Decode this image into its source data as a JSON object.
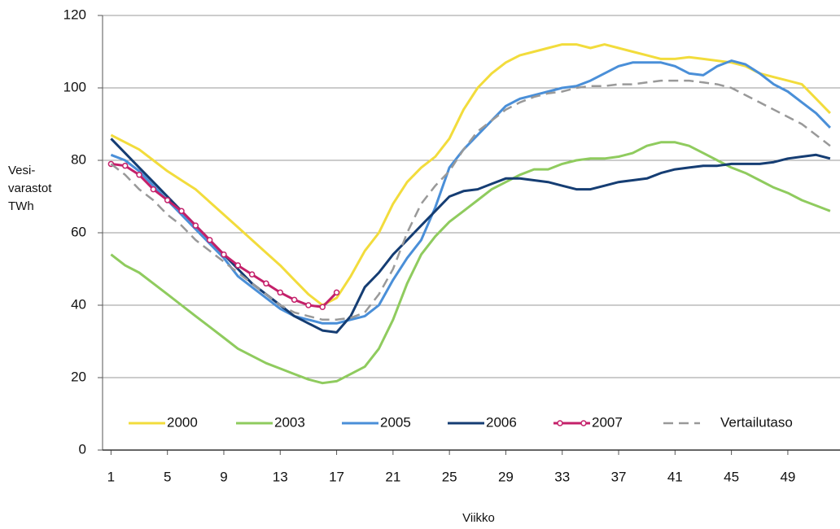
{
  "chart_data": {
    "type": "line",
    "y_label": [
      "Vesi-",
      "varastot",
      "TWh"
    ],
    "x_label": "Viikko",
    "x": [
      1,
      2,
      3,
      4,
      5,
      6,
      7,
      8,
      9,
      10,
      11,
      12,
      13,
      14,
      15,
      16,
      17,
      18,
      19,
      20,
      21,
      22,
      23,
      24,
      25,
      26,
      27,
      28,
      29,
      30,
      31,
      32,
      33,
      34,
      35,
      36,
      37,
      38,
      39,
      40,
      41,
      42,
      43,
      44,
      45,
      46,
      47,
      48,
      49,
      50,
      51,
      52
    ],
    "xlim": [
      0.4,
      52.7
    ],
    "xticks": [
      1,
      5,
      9,
      13,
      17,
      21,
      25,
      29,
      33,
      37,
      41,
      45,
      49
    ],
    "ylim": [
      0,
      120
    ],
    "yticks": [
      0,
      20,
      40,
      60,
      80,
      100,
      120
    ],
    "grid": true,
    "legend": "bottom",
    "series": [
      {
        "name": "2000",
        "color": "#f2dc3c",
        "values": [
          87,
          85,
          83,
          80,
          77,
          74.5,
          72,
          68.5,
          65,
          61.5,
          58,
          54.5,
          51,
          47,
          43,
          40,
          42,
          48,
          55,
          60,
          68,
          74,
          78,
          81,
          86,
          94,
          100,
          104,
          107,
          109,
          110,
          111,
          112,
          112,
          111,
          112,
          111,
          110,
          109,
          108,
          108,
          108.5,
          108,
          107.5,
          107,
          106,
          104,
          103,
          102,
          101,
          97,
          93
        ]
      },
      {
        "name": "2003",
        "color": "#8fcb5e",
        "values": [
          54,
          51,
          49,
          46,
          43,
          40,
          37,
          34,
          31,
          28,
          26,
          24,
          22.5,
          21,
          19.5,
          18.5,
          19,
          21,
          23,
          28,
          36,
          46,
          54,
          59,
          63,
          66,
          69,
          72,
          74,
          76,
          77.5,
          77.5,
          79,
          80,
          80.5,
          80.5,
          81,
          82,
          84,
          85,
          85,
          84,
          82,
          80,
          78,
          76.5,
          74.5,
          72.5,
          71,
          69,
          67.5,
          66
        ]
      },
      {
        "name": "2005",
        "color": "#4a8fd8",
        "values": [
          81.5,
          80,
          77,
          73,
          69,
          65,
          61,
          57,
          53,
          48,
          45,
          42,
          39,
          37,
          36,
          35,
          35,
          36,
          37,
          40,
          47,
          53,
          58,
          67,
          78,
          83,
          87,
          91,
          95,
          97,
          98,
          99,
          100,
          100.5,
          102,
          104,
          106,
          107,
          107,
          107,
          106,
          104,
          103.5,
          106,
          107.5,
          106.5,
          104,
          101,
          99,
          96,
          93,
          89
        ]
      },
      {
        "name": "2006",
        "color": "#153d73",
        "values": [
          86,
          82,
          78,
          74,
          70,
          66,
          62,
          58,
          54,
          50,
          46,
          43,
          40,
          37,
          35,
          33,
          32.5,
          37,
          45,
          49,
          54,
          58,
          62,
          66,
          70,
          71.5,
          72,
          73.5,
          75,
          75,
          74.5,
          74,
          73,
          72,
          72,
          73,
          74,
          74.5,
          75,
          76.5,
          77.5,
          78,
          78.5,
          78.5,
          79,
          79,
          79,
          79.5,
          80.5,
          81,
          81.5,
          80.5
        ]
      },
      {
        "name": "2007",
        "color": "#c4206a",
        "markers": true,
        "values": [
          79,
          78.5,
          76,
          72,
          69,
          66,
          62,
          58,
          54,
          51,
          48.5,
          46,
          43.5,
          41.5,
          40,
          39.5,
          43.5,
          null,
          null,
          null,
          null,
          null,
          null,
          null,
          null,
          null,
          null,
          null,
          null,
          null,
          null,
          null,
          null,
          null,
          null,
          null,
          null,
          null,
          null,
          null,
          null,
          null,
          null,
          null,
          null,
          null,
          null,
          null,
          null,
          null,
          null,
          null
        ]
      },
      {
        "name": "Vertailutaso",
        "color": "#999999",
        "dashed": true,
        "values": [
          79,
          76,
          72,
          69,
          65,
          62,
          58,
          55,
          52,
          49,
          46,
          43,
          40,
          38,
          37,
          36,
          36,
          36.5,
          38,
          43,
          50,
          60,
          68,
          73,
          77,
          83,
          88,
          91,
          94,
          96,
          97.5,
          98.5,
          99,
          100,
          100.5,
          100.5,
          101,
          101,
          101.5,
          102,
          102,
          102,
          101.5,
          101,
          100,
          98,
          96,
          94,
          92,
          90,
          87,
          84
        ]
      }
    ]
  }
}
